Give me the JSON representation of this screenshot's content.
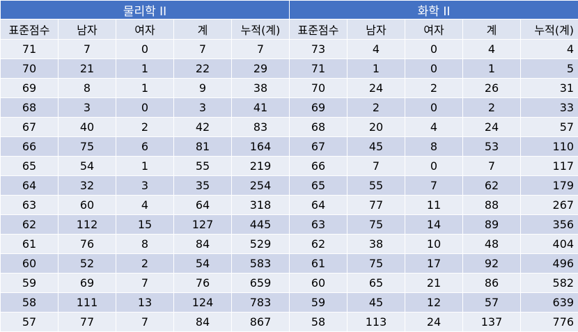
{
  "groups": [
    {
      "title": "물리학 II",
      "headers": [
        "표준점수",
        "남자",
        "여자",
        "계",
        "누적(계)"
      ],
      "rows": [
        [
          "71",
          "7",
          "0",
          "7",
          "7"
        ],
        [
          "70",
          "21",
          "1",
          "22",
          "29"
        ],
        [
          "69",
          "8",
          "1",
          "9",
          "38"
        ],
        [
          "68",
          "3",
          "0",
          "3",
          "41"
        ],
        [
          "67",
          "40",
          "2",
          "42",
          "83"
        ],
        [
          "66",
          "75",
          "6",
          "81",
          "164"
        ],
        [
          "65",
          "54",
          "1",
          "55",
          "219"
        ],
        [
          "64",
          "32",
          "3",
          "35",
          "254"
        ],
        [
          "63",
          "60",
          "4",
          "64",
          "318"
        ],
        [
          "62",
          "112",
          "15",
          "127",
          "445"
        ],
        [
          "61",
          "76",
          "8",
          "84",
          "529"
        ],
        [
          "60",
          "52",
          "2",
          "54",
          "583"
        ],
        [
          "59",
          "69",
          "7",
          "76",
          "659"
        ],
        [
          "58",
          "111",
          "13",
          "124",
          "783"
        ],
        [
          "57",
          "77",
          "7",
          "84",
          "867"
        ]
      ]
    },
    {
      "title": "화학 II",
      "headers": [
        "표준점수",
        "남자",
        "여자",
        "계",
        "누적(계)"
      ],
      "rows": [
        [
          "73",
          "4",
          "0",
          "4",
          "4"
        ],
        [
          "71",
          "1",
          "0",
          "1",
          "5"
        ],
        [
          "70",
          "24",
          "2",
          "26",
          "31"
        ],
        [
          "69",
          "2",
          "0",
          "2",
          "33"
        ],
        [
          "68",
          "20",
          "4",
          "24",
          "57"
        ],
        [
          "67",
          "45",
          "8",
          "53",
          "110"
        ],
        [
          "66",
          "7",
          "0",
          "7",
          "117"
        ],
        [
          "65",
          "55",
          "7",
          "62",
          "179"
        ],
        [
          "64",
          "77",
          "11",
          "88",
          "267"
        ],
        [
          "63",
          "75",
          "14",
          "89",
          "356"
        ],
        [
          "62",
          "38",
          "10",
          "48",
          "404"
        ],
        [
          "61",
          "75",
          "17",
          "92",
          "496"
        ],
        [
          "60",
          "65",
          "21",
          "86",
          "582"
        ],
        [
          "59",
          "45",
          "12",
          "57",
          "639"
        ],
        [
          "58",
          "113",
          "24",
          "137",
          "776"
        ]
      ]
    }
  ],
  "colors": {
    "header": "#4472c4",
    "subheader": "#dde3f0",
    "row_light": "#e9edf5",
    "row_dark": "#cfd6ea"
  }
}
